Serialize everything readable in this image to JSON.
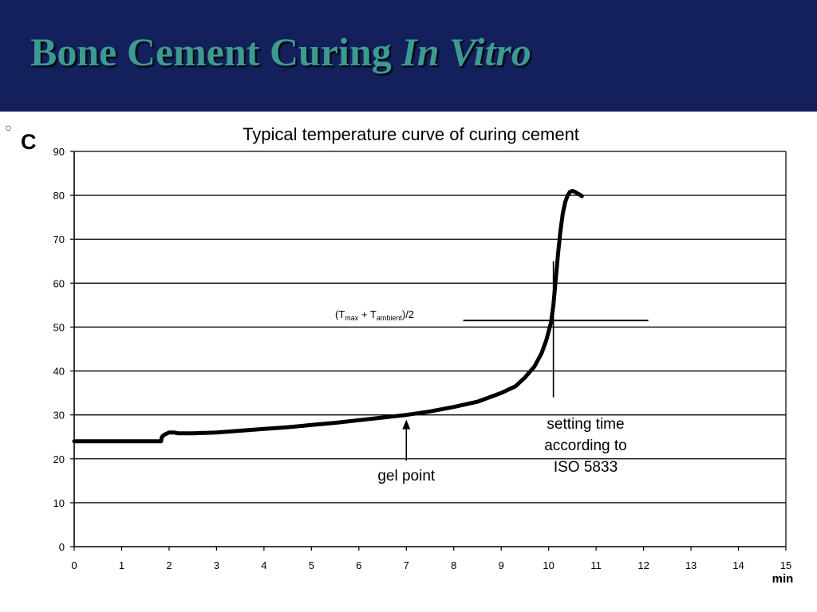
{
  "slide": {
    "title_main": "Bone Cement Curing",
    "title_italic": "In Vitro",
    "bullet": "◦",
    "unit_label": "C"
  },
  "chart_data": {
    "type": "line",
    "title": "Typical temperature curve of curing cement",
    "xlabel": "min",
    "ylabel": "C",
    "xlim": [
      0,
      15
    ],
    "ylim": [
      0,
      90
    ],
    "x_ticks": [
      0,
      1,
      2,
      3,
      4,
      5,
      6,
      7,
      8,
      9,
      10,
      11,
      12,
      13,
      14,
      15
    ],
    "y_ticks": [
      0,
      10,
      20,
      30,
      40,
      50,
      60,
      70,
      80,
      90
    ],
    "grid": true,
    "series": [
      {
        "x": [
          0,
          0.5,
          1.0,
          1.5,
          1.83,
          1.85,
          1.9,
          2.0,
          2.1,
          2.2,
          2.5,
          3.0,
          3.5,
          4.0,
          4.5,
          5.0,
          5.5,
          6.0,
          6.5,
          7.0,
          7.5,
          8.0,
          8.5,
          9.0,
          9.3,
          9.5,
          9.7,
          9.85,
          9.95,
          10.05,
          10.1,
          10.15,
          10.2,
          10.25,
          10.3,
          10.35,
          10.4,
          10.45,
          10.5,
          10.55,
          10.6,
          10.65,
          10.7
        ],
        "y": [
          24,
          24,
          24,
          24,
          24,
          25,
          25.5,
          26,
          26,
          25.8,
          25.8,
          26,
          26.4,
          26.8,
          27.2,
          27.7,
          28.2,
          28.8,
          29.4,
          30,
          30.8,
          31.8,
          33,
          35,
          36.5,
          38.5,
          41,
          44,
          47,
          51,
          55,
          61,
          67,
          72,
          76,
          78.5,
          80,
          80.8,
          81,
          80.8,
          80.5,
          80.2,
          79.8
        ]
      }
    ],
    "reference_line": {
      "label_parts": [
        "(T",
        "max",
        " + T",
        "ambient",
        ")/2"
      ],
      "x_start": 8.2,
      "x_end": 12.1,
      "y": 51.5
    },
    "annotations": [
      {
        "name": "gel-point",
        "lines": [
          "gel point"
        ],
        "x": 7.0,
        "y": 30
      },
      {
        "name": "setting-time",
        "lines": [
          "setting time",
          "according to",
          "ISO 5833"
        ],
        "x": 10.1,
        "y_top": 65,
        "y_bottom": 34
      }
    ]
  }
}
